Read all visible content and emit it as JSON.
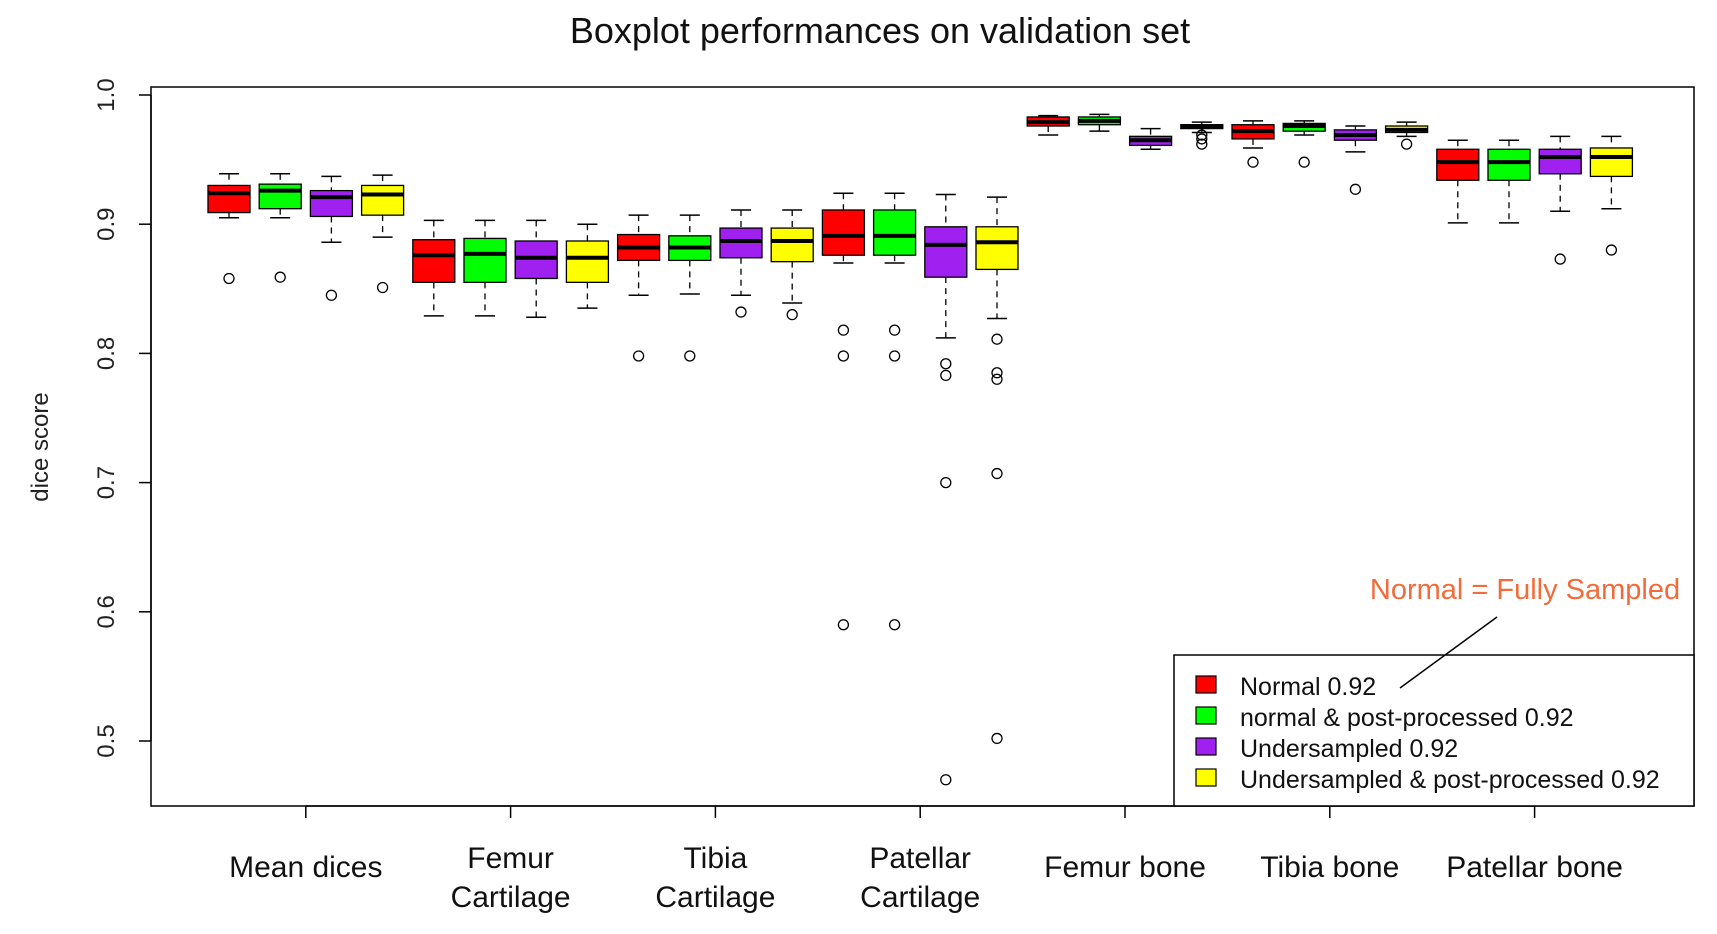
{
  "chart_data": {
    "type": "boxplot",
    "title": "Boxplot performances on validation set",
    "xlabel": "",
    "ylabel": "dice score",
    "ylim": [
      0.45,
      1.0
    ],
    "yticks": [
      0.5,
      0.6,
      0.7,
      0.8,
      0.9,
      1.0
    ],
    "ytick_labels": [
      "0.5",
      "0.6",
      "0.7",
      "0.8",
      "0.9",
      "1.0"
    ],
    "grid": false,
    "legend_position": "bottom-right",
    "annotation": "Normal = Fully Sampled",
    "groups": [
      {
        "label_lines": [
          "Mean dices"
        ]
      },
      {
        "label_lines": [
          "Femur",
          "Cartilage"
        ]
      },
      {
        "label_lines": [
          "Tibia",
          "Cartilage"
        ]
      },
      {
        "label_lines": [
          "Patellar",
          "Cartilage"
        ]
      },
      {
        "label_lines": [
          "Femur bone"
        ]
      },
      {
        "label_lines": [
          "Tibia bone"
        ]
      },
      {
        "label_lines": [
          "Patellar bone"
        ]
      }
    ],
    "series": [
      {
        "name": "Normal 0.92",
        "color": "#ff0000",
        "boxes": [
          {
            "whisker_low": 0.905,
            "q1": 0.909,
            "median": 0.924,
            "q3": 0.93,
            "whisker_high": 0.939,
            "outliers": [
              0.858
            ]
          },
          {
            "whisker_low": 0.829,
            "q1": 0.855,
            "median": 0.876,
            "q3": 0.888,
            "whisker_high": 0.903,
            "outliers": []
          },
          {
            "whisker_low": 0.845,
            "q1": 0.872,
            "median": 0.882,
            "q3": 0.892,
            "whisker_high": 0.907,
            "outliers": [
              0.798
            ]
          },
          {
            "whisker_low": 0.87,
            "q1": 0.876,
            "median": 0.891,
            "q3": 0.911,
            "whisker_high": 0.924,
            "outliers": [
              0.818,
              0.798,
              0.59
            ]
          },
          {
            "whisker_low": 0.969,
            "q1": 0.976,
            "median": 0.979,
            "q3": 0.983,
            "whisker_high": 0.984,
            "outliers": []
          },
          {
            "whisker_low": 0.959,
            "q1": 0.966,
            "median": 0.972,
            "q3": 0.977,
            "whisker_high": 0.98,
            "outliers": [
              0.948
            ]
          },
          {
            "whisker_low": 0.901,
            "q1": 0.934,
            "median": 0.948,
            "q3": 0.958,
            "whisker_high": 0.965,
            "outliers": []
          }
        ]
      },
      {
        "name": "normal & post-processed 0.92",
        "color": "#00ff00",
        "boxes": [
          {
            "whisker_low": 0.905,
            "q1": 0.912,
            "median": 0.926,
            "q3": 0.931,
            "whisker_high": 0.939,
            "outliers": [
              0.859
            ]
          },
          {
            "whisker_low": 0.829,
            "q1": 0.855,
            "median": 0.877,
            "q3": 0.889,
            "whisker_high": 0.903,
            "outliers": []
          },
          {
            "whisker_low": 0.846,
            "q1": 0.872,
            "median": 0.882,
            "q3": 0.891,
            "whisker_high": 0.907,
            "outliers": [
              0.798
            ]
          },
          {
            "whisker_low": 0.87,
            "q1": 0.876,
            "median": 0.891,
            "q3": 0.911,
            "whisker_high": 0.924,
            "outliers": [
              0.818,
              0.798,
              0.59
            ]
          },
          {
            "whisker_low": 0.972,
            "q1": 0.977,
            "median": 0.98,
            "q3": 0.983,
            "whisker_high": 0.985,
            "outliers": []
          },
          {
            "whisker_low": 0.969,
            "q1": 0.972,
            "median": 0.976,
            "q3": 0.978,
            "whisker_high": 0.98,
            "outliers": [
              0.948
            ]
          },
          {
            "whisker_low": 0.901,
            "q1": 0.934,
            "median": 0.948,
            "q3": 0.958,
            "whisker_high": 0.965,
            "outliers": []
          }
        ]
      },
      {
        "name": "Undersampled 0.92",
        "color": "#a020f0",
        "boxes": [
          {
            "whisker_low": 0.886,
            "q1": 0.906,
            "median": 0.921,
            "q3": 0.926,
            "whisker_high": 0.937,
            "outliers": [
              0.845
            ]
          },
          {
            "whisker_low": 0.828,
            "q1": 0.858,
            "median": 0.874,
            "q3": 0.887,
            "whisker_high": 0.903,
            "outliers": []
          },
          {
            "whisker_low": 0.845,
            "q1": 0.874,
            "median": 0.887,
            "q3": 0.897,
            "whisker_high": 0.911,
            "outliers": [
              0.832
            ]
          },
          {
            "whisker_low": 0.812,
            "q1": 0.859,
            "median": 0.884,
            "q3": 0.898,
            "whisker_high": 0.923,
            "outliers": [
              0.792,
              0.783,
              0.7,
              0.47
            ]
          },
          {
            "whisker_low": 0.958,
            "q1": 0.961,
            "median": 0.965,
            "q3": 0.968,
            "whisker_high": 0.974,
            "outliers": []
          },
          {
            "whisker_low": 0.956,
            "q1": 0.965,
            "median": 0.969,
            "q3": 0.973,
            "whisker_high": 0.976,
            "outliers": [
              0.927
            ]
          },
          {
            "whisker_low": 0.91,
            "q1": 0.939,
            "median": 0.952,
            "q3": 0.958,
            "whisker_high": 0.968,
            "outliers": [
              0.873
            ]
          }
        ]
      },
      {
        "name": "Undersampled & post-processed 0.92",
        "color": "#ffff00",
        "boxes": [
          {
            "whisker_low": 0.89,
            "q1": 0.907,
            "median": 0.923,
            "q3": 0.93,
            "whisker_high": 0.938,
            "outliers": [
              0.851
            ]
          },
          {
            "whisker_low": 0.835,
            "q1": 0.855,
            "median": 0.874,
            "q3": 0.887,
            "whisker_high": 0.9,
            "outliers": []
          },
          {
            "whisker_low": 0.839,
            "q1": 0.871,
            "median": 0.887,
            "q3": 0.897,
            "whisker_high": 0.911,
            "outliers": [
              0.83
            ]
          },
          {
            "whisker_low": 0.827,
            "q1": 0.865,
            "median": 0.886,
            "q3": 0.898,
            "whisker_high": 0.921,
            "outliers": [
              0.811,
              0.785,
              0.78,
              0.707,
              0.502
            ]
          },
          {
            "whisker_low": 0.971,
            "q1": 0.974,
            "median": 0.976,
            "q3": 0.977,
            "whisker_high": 0.979,
            "outliers": [
              0.969,
              0.966,
              0.962
            ]
          },
          {
            "whisker_low": 0.968,
            "q1": 0.971,
            "median": 0.973,
            "q3": 0.976,
            "whisker_high": 0.979,
            "outliers": [
              0.962
            ]
          },
          {
            "whisker_low": 0.912,
            "q1": 0.937,
            "median": 0.952,
            "q3": 0.959,
            "whisker_high": 0.968,
            "outliers": [
              0.88
            ]
          }
        ]
      }
    ]
  }
}
